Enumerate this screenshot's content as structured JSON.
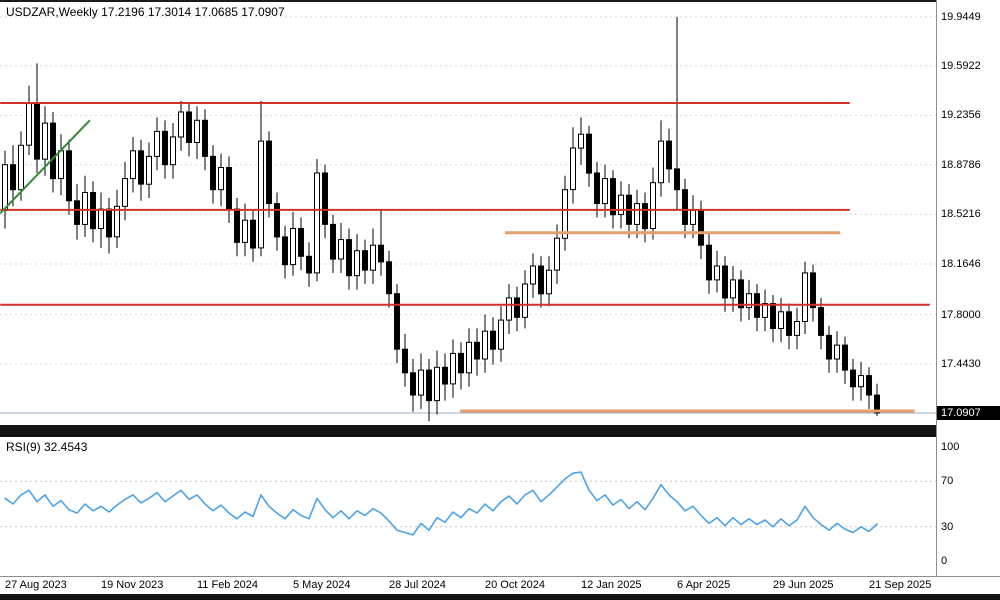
{
  "chart_data": {
    "type": "candlestick",
    "symbol": "USDZAR",
    "timeframe": "Weekly",
    "title": "USDZAR,Weekly 17.2196 17.3014 17.0685 17.0907",
    "ohlc_display": {
      "open": "17.2196",
      "high": "17.3014",
      "low": "17.0685",
      "close": "17.0907"
    },
    "price_axis": {
      "labels": [
        "19.9449",
        "19.5922",
        "19.2356",
        "18.8786",
        "18.5216",
        "18.1646",
        "17.8000",
        "17.4430"
      ],
      "current_price": 17.0907,
      "current_price_label": "17.0907",
      "ylim": [
        17.004,
        20.067
      ],
      "grid": true
    },
    "x_axis": {
      "labels": [
        {
          "text": "27 Aug 2023",
          "i": 0
        },
        {
          "text": "19 Nov 2023",
          "i": 12
        },
        {
          "text": "11 Feb 2024",
          "i": 24
        },
        {
          "text": "5 May 2024",
          "i": 36
        },
        {
          "text": "28 Jul 2024",
          "i": 48
        },
        {
          "text": "20 Oct 2024",
          "i": 60
        },
        {
          "text": "12 Jan 2025",
          "i": 72
        },
        {
          "text": "6 Apr 2025",
          "i": 84
        },
        {
          "text": "29 Jun 2025",
          "i": 96
        },
        {
          "text": "21 Sep 2025",
          "i": 108
        }
      ]
    },
    "candles": [
      [
        18.55,
        18.98,
        18.42,
        18.88
      ],
      [
        18.88,
        19.02,
        18.58,
        18.7
      ],
      [
        18.7,
        19.12,
        18.62,
        19.02
      ],
      [
        19.02,
        19.45,
        18.95,
        19.32
      ],
      [
        19.32,
        19.61,
        18.82,
        18.92
      ],
      [
        18.92,
        19.3,
        18.8,
        19.18
      ],
      [
        19.18,
        19.26,
        18.68,
        18.78
      ],
      [
        18.78,
        19.1,
        18.66,
        18.98
      ],
      [
        18.98,
        19.06,
        18.52,
        18.62
      ],
      [
        18.62,
        18.74,
        18.34,
        18.45
      ],
      [
        18.45,
        18.8,
        18.36,
        18.68
      ],
      [
        18.68,
        18.76,
        18.32,
        18.42
      ],
      [
        18.42,
        18.68,
        18.28,
        18.56
      ],
      [
        18.56,
        18.64,
        18.24,
        18.36
      ],
      [
        18.36,
        18.7,
        18.28,
        18.58
      ],
      [
        18.58,
        18.9,
        18.48,
        18.78
      ],
      [
        18.78,
        19.08,
        18.68,
        18.98
      ],
      [
        18.98,
        19.06,
        18.62,
        18.74
      ],
      [
        18.74,
        19.04,
        18.64,
        18.94
      ],
      [
        18.94,
        19.22,
        18.84,
        19.12
      ],
      [
        19.12,
        19.2,
        18.78,
        18.88
      ],
      [
        18.88,
        19.18,
        18.78,
        19.08
      ],
      [
        19.08,
        19.34,
        18.98,
        19.26
      ],
      [
        19.26,
        19.32,
        18.94,
        19.04
      ],
      [
        19.04,
        19.3,
        18.92,
        19.2
      ],
      [
        19.2,
        19.28,
        18.84,
        18.94
      ],
      [
        18.94,
        19.02,
        18.6,
        18.7
      ],
      [
        18.7,
        18.96,
        18.58,
        18.86
      ],
      [
        18.86,
        18.94,
        18.46,
        18.56
      ],
      [
        18.56,
        18.64,
        18.22,
        18.32
      ],
      [
        18.32,
        18.6,
        18.22,
        18.48
      ],
      [
        18.48,
        18.56,
        18.18,
        18.28
      ],
      [
        18.28,
        19.34,
        18.22,
        19.05
      ],
      [
        19.05,
        19.12,
        18.5,
        18.6
      ],
      [
        18.6,
        18.68,
        18.26,
        18.36
      ],
      [
        18.36,
        18.44,
        18.06,
        18.16
      ],
      [
        18.16,
        18.54,
        18.08,
        18.42
      ],
      [
        18.42,
        18.5,
        18.12,
        18.22
      ],
      [
        18.22,
        18.32,
        18.0,
        18.1
      ],
      [
        18.1,
        18.92,
        18.04,
        18.82
      ],
      [
        18.82,
        18.88,
        18.35,
        18.45
      ],
      [
        18.45,
        18.52,
        18.1,
        18.2
      ],
      [
        18.2,
        18.46,
        18.1,
        18.34
      ],
      [
        18.34,
        18.42,
        17.98,
        18.08
      ],
      [
        18.08,
        18.38,
        17.98,
        18.26
      ],
      [
        18.26,
        18.34,
        18.02,
        18.12
      ],
      [
        18.12,
        18.42,
        18.02,
        18.3
      ],
      [
        18.3,
        18.56,
        18.08,
        18.18
      ],
      [
        18.18,
        18.26,
        17.85,
        17.95
      ],
      [
        17.95,
        18.02,
        17.45,
        17.55
      ],
      [
        17.55,
        17.66,
        17.28,
        17.38
      ],
      [
        17.38,
        17.48,
        17.1,
        17.22
      ],
      [
        17.22,
        17.52,
        17.12,
        17.4
      ],
      [
        17.4,
        17.48,
        17.03,
        17.18
      ],
      [
        17.18,
        17.54,
        17.08,
        17.42
      ],
      [
        17.42,
        17.52,
        17.18,
        17.3
      ],
      [
        17.3,
        17.62,
        17.2,
        17.52
      ],
      [
        17.52,
        17.6,
        17.26,
        17.38
      ],
      [
        17.38,
        17.7,
        17.28,
        17.6
      ],
      [
        17.6,
        17.7,
        17.36,
        17.48
      ],
      [
        17.48,
        17.8,
        17.38,
        17.68
      ],
      [
        17.68,
        17.78,
        17.44,
        17.55
      ],
      [
        17.55,
        17.86,
        17.46,
        17.76
      ],
      [
        17.76,
        18.02,
        17.66,
        17.92
      ],
      [
        17.92,
        18.0,
        17.68,
        17.78
      ],
      [
        17.78,
        18.12,
        17.7,
        18.02
      ],
      [
        18.02,
        18.24,
        17.92,
        18.15
      ],
      [
        18.15,
        18.22,
        17.85,
        17.95
      ],
      [
        17.95,
        18.22,
        17.86,
        18.12
      ],
      [
        18.12,
        18.45,
        18.02,
        18.35
      ],
      [
        18.35,
        18.8,
        18.26,
        18.7
      ],
      [
        18.7,
        19.15,
        18.6,
        19.0
      ],
      [
        19.0,
        19.22,
        18.88,
        19.1
      ],
      [
        19.1,
        19.16,
        18.72,
        18.82
      ],
      [
        18.82,
        18.9,
        18.5,
        18.6
      ],
      [
        18.6,
        18.88,
        18.5,
        18.78
      ],
      [
        18.78,
        18.84,
        18.42,
        18.52
      ],
      [
        18.52,
        18.76,
        18.42,
        18.66
      ],
      [
        18.66,
        18.74,
        18.35,
        18.45
      ],
      [
        18.45,
        18.7,
        18.35,
        18.6
      ],
      [
        18.6,
        18.68,
        18.32,
        18.42
      ],
      [
        18.42,
        18.86,
        18.34,
        18.75
      ],
      [
        18.75,
        19.2,
        18.65,
        19.05
      ],
      [
        19.05,
        19.14,
        18.75,
        18.85
      ],
      [
        18.85,
        19.9449,
        18.55,
        18.7
      ],
      [
        18.7,
        18.78,
        18.35,
        18.45
      ],
      [
        18.45,
        18.66,
        18.35,
        18.55
      ],
      [
        18.55,
        18.62,
        18.2,
        18.3
      ],
      [
        18.3,
        18.38,
        17.95,
        18.05
      ],
      [
        18.05,
        18.26,
        17.96,
        18.15
      ],
      [
        18.15,
        18.22,
        17.82,
        17.92
      ],
      [
        17.92,
        18.15,
        17.82,
        18.05
      ],
      [
        18.05,
        18.12,
        17.75,
        17.85
      ],
      [
        17.85,
        18.05,
        17.76,
        17.95
      ],
      [
        17.95,
        18.02,
        17.68,
        17.78
      ],
      [
        17.78,
        17.98,
        17.68,
        17.88
      ],
      [
        17.88,
        17.94,
        17.6,
        17.7
      ],
      [
        17.7,
        17.92,
        17.6,
        17.82
      ],
      [
        17.82,
        17.88,
        17.55,
        17.65
      ],
      [
        17.65,
        17.85,
        17.55,
        17.75
      ],
      [
        17.75,
        18.18,
        17.66,
        18.1
      ],
      [
        18.1,
        18.16,
        17.75,
        17.85
      ],
      [
        17.85,
        17.92,
        17.55,
        17.65
      ],
      [
        17.65,
        17.72,
        17.38,
        17.48
      ],
      [
        17.48,
        17.68,
        17.38,
        17.58
      ],
      [
        17.58,
        17.64,
        17.3,
        17.4
      ],
      [
        17.4,
        17.48,
        17.18,
        17.28
      ],
      [
        17.28,
        17.46,
        17.18,
        17.36
      ],
      [
        17.36,
        17.42,
        17.12,
        17.22
      ],
      [
        17.2196,
        17.3014,
        17.0685,
        17.0907
      ]
    ],
    "overlays": {
      "hlines": [
        {
          "name": "resistance-upper",
          "color": "#cf322a",
          "price": 19.325,
          "from": -0.6,
          "to": 105.6,
          "width": 2
        },
        {
          "name": "resistance-mid",
          "color": "#cf322a",
          "price": 18.554,
          "from": -0.6,
          "to": 105.6,
          "width": 2
        },
        {
          "name": "support-mid",
          "color": "#cf322a",
          "price": 17.87,
          "from": -0.6,
          "to": 115.6,
          "width": 2
        },
        {
          "name": "orange-upper",
          "color": "#e5a06c",
          "price": 18.39,
          "from": 62.5,
          "to": 104.4,
          "width": 3
        },
        {
          "name": "orange-lower",
          "color": "#e5a06c",
          "price": 17.105,
          "from": 56.9,
          "to": 113.7,
          "width": 3
        }
      ],
      "trendline": {
        "color": "#2f8a33",
        "x1": -0.6,
        "price1": 18.53,
        "x2": 10.6,
        "price2": 19.2,
        "width": 2
      },
      "current_price_line": {
        "color": "#9fb0c0",
        "price": 17.0907
      }
    },
    "rsi": {
      "label": "RSI(9) 32.4543",
      "period": 9,
      "current": 32.4543,
      "color": "#4da3e8",
      "levels": [
        "100",
        "70",
        "30",
        "0"
      ],
      "level_lines": [
        70,
        30
      ],
      "ylim": [
        0,
        100
      ],
      "values": [
        55,
        50,
        58,
        62,
        52,
        58,
        48,
        53,
        45,
        42,
        50,
        44,
        48,
        43,
        49,
        54,
        58,
        51,
        55,
        60,
        52,
        57,
        62,
        54,
        58,
        50,
        44,
        49,
        42,
        37,
        43,
        39,
        58,
        48,
        42,
        37,
        45,
        40,
        37,
        55,
        45,
        38,
        44,
        37,
        44,
        40,
        46,
        42,
        35,
        27,
        25,
        23,
        33,
        27,
        38,
        34,
        43,
        38,
        46,
        42,
        50,
        44,
        52,
        57,
        50,
        58,
        62,
        52,
        58,
        65,
        72,
        77,
        78,
        62,
        53,
        58,
        49,
        54,
        46,
        52,
        45,
        55,
        67,
        58,
        52,
        44,
        48,
        40,
        33,
        38,
        31,
        38,
        32,
        37,
        32,
        36,
        30,
        37,
        31,
        36,
        48,
        38,
        32,
        27,
        33,
        28,
        25,
        30,
        26,
        32.4543
      ]
    }
  }
}
